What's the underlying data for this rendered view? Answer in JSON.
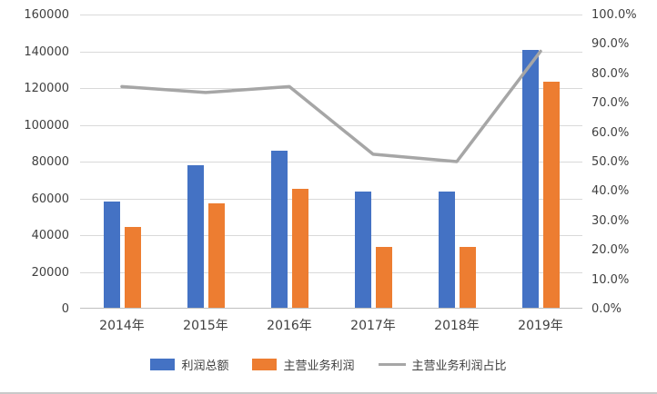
{
  "chart_data": {
    "type": "bar",
    "subtype": "bar+line combo",
    "categories": [
      "2014年",
      "2015年",
      "2016年",
      "2017年",
      "2018年",
      "2019年"
    ],
    "series": [
      {
        "name": "利润总额",
        "type": "bar",
        "axis": "left",
        "color": "#4472C4",
        "values": [
          58000,
          77500,
          85500,
          63000,
          63000,
          140500
        ]
      },
      {
        "name": "主营业务利润",
        "type": "bar",
        "axis": "left",
        "color": "#ED7D31",
        "values": [
          44000,
          57000,
          64500,
          33000,
          33000,
          123000
        ]
      },
      {
        "name": "主营业务利润占比",
        "type": "line",
        "axis": "right",
        "color": "#A6A6A6",
        "values": [
          75.5,
          73.5,
          75.5,
          52.5,
          50.0,
          87.5
        ]
      }
    ],
    "title": "",
    "xlabel": "",
    "ylabel": "",
    "left_axis": {
      "min": 0,
      "max": 160000,
      "step": 20000,
      "tick_labels": [
        "160000",
        "140000",
        "120000",
        "100000",
        "80000",
        "60000",
        "40000",
        "20000",
        "0"
      ]
    },
    "right_axis": {
      "min": 0,
      "max": 100,
      "step": 10,
      "tick_labels": [
        "100.0%",
        "90.0%",
        "80.0%",
        "70.0%",
        "60.0%",
        "50.0%",
        "40.0%",
        "30.0%",
        "20.0%",
        "10.0%",
        "0.0%"
      ]
    },
    "grid": true,
    "gridline_color": "#d9d9d9",
    "axis_line_color": "#bfbfbf",
    "text_color": "#404040",
    "legend_position": "bottom"
  }
}
